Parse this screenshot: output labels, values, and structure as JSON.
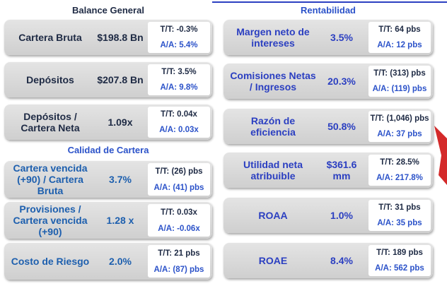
{
  "sections": [
    {
      "title": "Balance General",
      "cards": [
        {
          "label": [
            "Cartera Bruta"
          ],
          "value": "$198.8 Bn",
          "tt": "T/T: -0.3%",
          "aa": "A/A: 5.4%"
        },
        {
          "label": [
            "Depósitos"
          ],
          "value": "$207.8 Bn",
          "tt": "T/T: 3.5%",
          "aa": "A/A: 9.8%"
        },
        {
          "label": [
            "Depósitos /",
            "Cartera Neta"
          ],
          "value": "1.09x",
          "tt": "T/T: 0.04x",
          "aa": "A/A: 0.03x"
        }
      ]
    },
    {
      "title": "Calidad de Cartera",
      "cards": [
        {
          "label": [
            "Cartera vencida",
            "(+90) / Cartera",
            "Bruta"
          ],
          "value": "3.7%",
          "tt": "T/T: (26) pbs",
          "aa": "A/A: (41) pbs"
        },
        {
          "label": [
            "Provisiones /",
            "Cartera vencida",
            "(+90)"
          ],
          "value": "1.28 x",
          "tt": "T/T: 0.03x",
          "aa": "A/A: -0.06x"
        },
        {
          "label": [
            "Costo de Riesgo"
          ],
          "value": "2.0%",
          "tt": "T/T: 21 pbs",
          "aa": "A/A: (87) pbs"
        }
      ]
    },
    {
      "title": "Rentabilidad",
      "cards": [
        {
          "label": [
            "Margen neto de",
            "intereses"
          ],
          "value": "3.5%",
          "tt": "T/T: 64 pbs",
          "aa": "A/A: 12 pbs"
        },
        {
          "label": [
            "Comisiones Netas",
            "/ Ingresos"
          ],
          "value": "20.3%",
          "tt": "T/T: (313) pbs",
          "aa": "A/A: (119) pbs"
        },
        {
          "label": [
            "Razón de",
            "eficiencia"
          ],
          "value": "50.8%",
          "tt": "T/T: (1,046) pbs",
          "aa": "A/A: 37 pbs"
        },
        {
          "label": [
            "Utilidad neta",
            "atribuible"
          ],
          "value": "$361.6 mm",
          "tt": "T/T: 28.5%",
          "aa": "A/A: 217.8%"
        },
        {
          "label": [
            "ROAA"
          ],
          "value": "1.0%",
          "tt": "T/T: 31 pbs",
          "aa": "A/A: 35 pbs"
        },
        {
          "label": [
            "ROAE"
          ],
          "value": "8.4%",
          "tt": "T/T: 189 pbs",
          "aa": "A/A: 562 pbs"
        }
      ]
    }
  ]
}
